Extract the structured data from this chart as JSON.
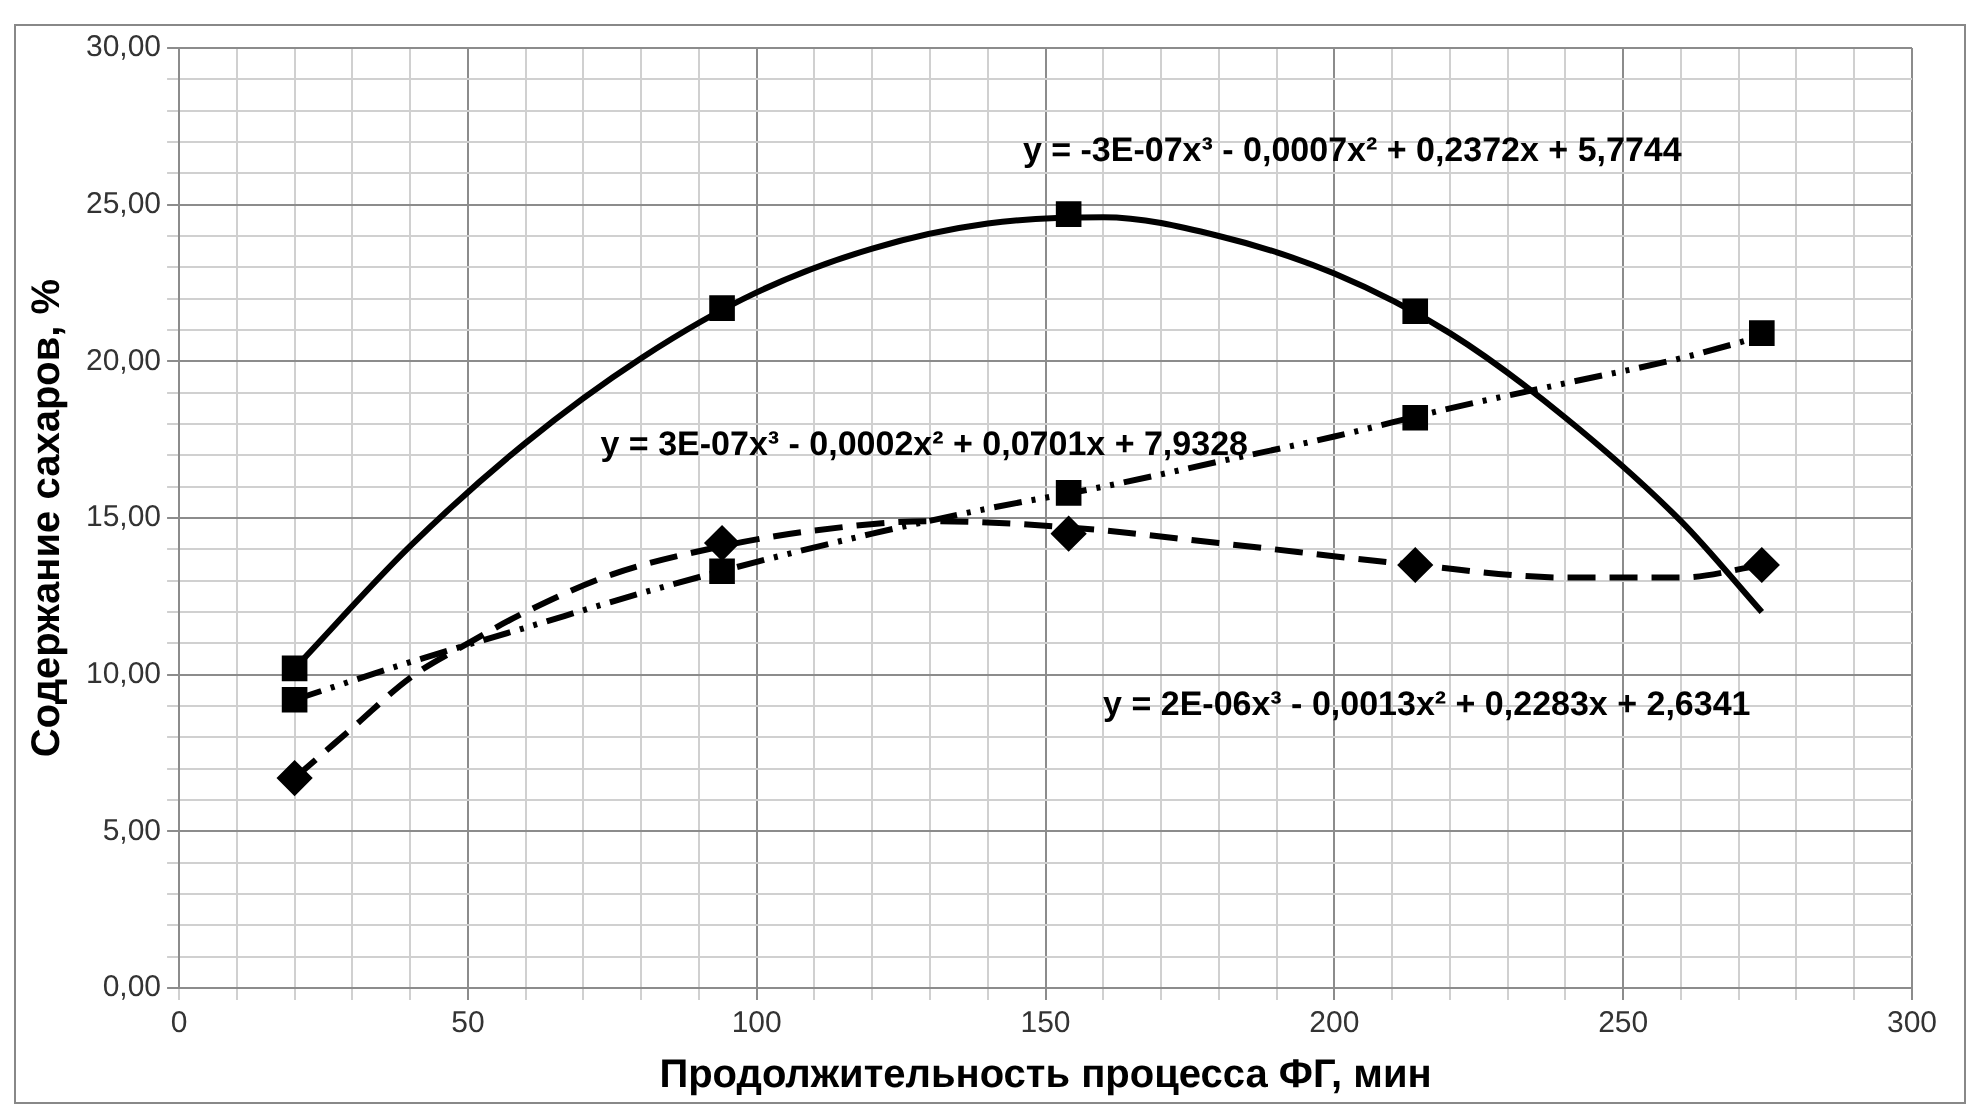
{
  "chart_data": {
    "type": "scatter",
    "xlabel": "Продолжительность процесса ФГ, мин",
    "ylabel": "Содержание сахаров, %",
    "xlim": [
      0,
      300
    ],
    "ylim": [
      0,
      30
    ],
    "xticks": [
      0,
      {
        "value": 10,
        "label": null
      },
      {
        "value": 20,
        "label": null
      },
      {
        "value": 30,
        "label": null
      },
      {
        "value": 40,
        "label": null
      },
      50,
      {
        "value": 60,
        "label": null
      },
      {
        "value": 70,
        "label": null
      },
      {
        "value": 80,
        "label": null
      },
      {
        "value": 90,
        "label": null
      },
      100,
      {
        "value": 110,
        "label": null
      },
      {
        "value": 120,
        "label": null
      },
      {
        "value": 130,
        "label": null
      },
      {
        "value": 140,
        "label": null
      },
      150,
      {
        "value": 160,
        "label": null
      },
      {
        "value": 170,
        "label": null
      },
      {
        "value": 180,
        "label": null
      },
      {
        "value": 190,
        "label": null
      },
      200,
      {
        "value": 210,
        "label": null
      },
      {
        "value": 220,
        "label": null
      },
      {
        "value": 230,
        "label": null
      },
      {
        "value": 240,
        "label": null
      },
      250,
      {
        "value": 260,
        "label": null
      },
      {
        "value": 270,
        "label": null
      },
      {
        "value": 280,
        "label": null
      },
      {
        "value": 290,
        "label": null
      },
      300
    ],
    "yticks": [
      {
        "value": 0,
        "label": "0,00"
      },
      {
        "value": 1,
        "label": null
      },
      {
        "value": 2,
        "label": null
      },
      {
        "value": 3,
        "label": null
      },
      {
        "value": 4,
        "label": null
      },
      {
        "value": 5,
        "label": "5,00"
      },
      {
        "value": 6,
        "label": null
      },
      {
        "value": 7,
        "label": null
      },
      {
        "value": 8,
        "label": null
      },
      {
        "value": 9,
        "label": null
      },
      {
        "value": 10,
        "label": "10,00"
      },
      {
        "value": 11,
        "label": null
      },
      {
        "value": 12,
        "label": null
      },
      {
        "value": 13,
        "label": null
      },
      {
        "value": 14,
        "label": null
      },
      {
        "value": 15,
        "label": "15,00"
      },
      {
        "value": 16,
        "label": null
      },
      {
        "value": 17,
        "label": null
      },
      {
        "value": 18,
        "label": null
      },
      {
        "value": 19,
        "label": null
      },
      {
        "value": 20,
        "label": "20,00"
      },
      {
        "value": 21,
        "label": null
      },
      {
        "value": 22,
        "label": null
      },
      {
        "value": 23,
        "label": null
      },
      {
        "value": 24,
        "label": null
      },
      {
        "value": 25,
        "label": "25,00"
      },
      {
        "value": 26,
        "label": null
      },
      {
        "value": 27,
        "label": null
      },
      {
        "value": 28,
        "label": null
      },
      {
        "value": 29,
        "label": null
      },
      {
        "value": 30,
        "label": "30,00"
      }
    ],
    "grid": true,
    "series": [
      {
        "marker": "square",
        "color": "#000000",
        "x": [
          20,
          94,
          154,
          214
        ],
        "values": [
          10.2,
          21.7,
          24.7,
          21.6
        ]
      },
      {
        "marker": "square",
        "color": "#000000",
        "x": [
          20,
          94,
          154,
          214,
          274
        ],
        "values": [
          9.2,
          13.3,
          15.8,
          18.2,
          20.9
        ]
      },
      {
        "marker": "diamond",
        "color": "#000000",
        "x": [
          20,
          94,
          154,
          214,
          274
        ],
        "values": [
          6.7,
          14.2,
          14.5,
          13.5,
          13.5
        ]
      },
      {
        "type": "line",
        "marker": "none",
        "line_style": "solid",
        "color": "#000000",
        "x": [
          20,
          40,
          60,
          80,
          100,
          120,
          140,
          160,
          180,
          200,
          220,
          240,
          260,
          274
        ],
        "values": [
          10.2,
          14.1,
          17.4,
          20.1,
          22.2,
          23.6,
          24.4,
          24.6,
          24.0,
          22.8,
          20.9,
          18.2,
          14.9,
          12.0
        ]
      },
      {
        "type": "line",
        "marker": "none",
        "line_style": "dotted",
        "color": "#000000",
        "x": [
          20,
          40,
          60,
          80,
          100,
          120,
          140,
          160,
          180,
          200,
          220,
          240,
          260,
          274
        ],
        "values": [
          9.2,
          10.4,
          11.5,
          12.6,
          13.6,
          14.5,
          15.3,
          16.0,
          16.8,
          17.6,
          18.5,
          19.3,
          20.1,
          20.8
        ]
      },
      {
        "type": "line",
        "marker": "none",
        "line_style": "dashed",
        "color": "#000000",
        "x": [
          20,
          30,
          40,
          50,
          60,
          75,
          94,
          110,
          130,
          154,
          180,
          214,
          240,
          260,
          274
        ],
        "values": [
          6.7,
          8.3,
          9.9,
          11.0,
          12.0,
          13.2,
          14.1,
          14.6,
          14.9,
          14.7,
          14.2,
          13.5,
          13.1,
          13.1,
          13.5
        ]
      }
    ],
    "annotations": [
      "y = -3E-07x³ - 0,0007x² + 0,2372x + 5,7744",
      "y = 3E-07x³ - 0,0002x² + 0,0701x + 7,9328",
      "y = 2E-06x³ - 0,0013x² + 0,2283x + 2,6341"
    ]
  }
}
